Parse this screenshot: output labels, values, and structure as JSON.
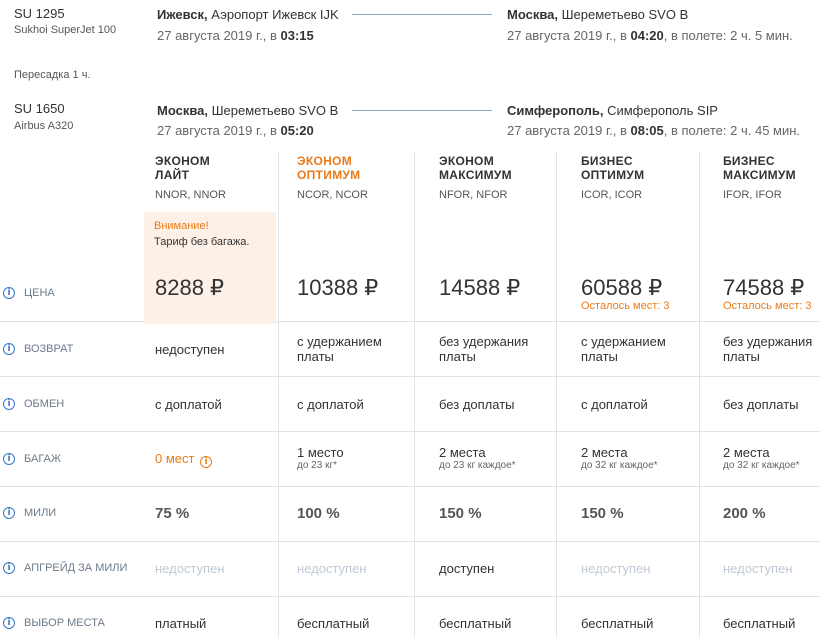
{
  "segments": [
    {
      "flight": "SU 1295",
      "aircraft": "Sukhoi SuperJet 100",
      "dep_city": "Ижевск,",
      "dep_airport": " Аэропорт Ижевск IJK",
      "dep_date": "27 августа 2019 г., в ",
      "dep_time": "03:15",
      "arr_city": "Москва,",
      "arr_airport": " Шереметьево SVO B",
      "arr_date": "27 августа 2019 г., в ",
      "arr_time": "04:20",
      "duration": ", в полете: 2 ч. 5 мин."
    },
    {
      "flight": "SU 1650",
      "aircraft": "Airbus A320",
      "dep_city": "Москва,",
      "dep_airport": " Шереметьево SVO B",
      "dep_date": "27 августа 2019 г., в ",
      "dep_time": "05:20",
      "arr_city": "Симферополь,",
      "arr_airport": " Симферополь SIP",
      "arr_date": "27 августа 2019 г., в ",
      "arr_time": "08:05",
      "duration": ", в полете: 2 ч. 45 мин."
    }
  ],
  "transfer": "Пересадка 1 ч.",
  "tariffs": [
    {
      "name1": "ЭКОНОМ",
      "name2": "ЛАЙТ",
      "code": "NNOR, NNOR",
      "highlight": false
    },
    {
      "name1": "ЭКОНОМ",
      "name2": "ОПТИМУМ",
      "code": "NCOR, NCOR",
      "highlight": true
    },
    {
      "name1": "ЭКОНОМ",
      "name2": "МАКСИМУМ",
      "code": "NFOR, NFOR",
      "highlight": false
    },
    {
      "name1": "БИЗНЕС",
      "name2": "ОПТИМУМ",
      "code": "ICOR, ICOR",
      "highlight": false
    },
    {
      "name1": "БИЗНЕС",
      "name2": "МАКСИМУМ",
      "code": "IFOR, IFOR",
      "highlight": false
    }
  ],
  "warning": {
    "title": "Внимание!",
    "text": "Тариф без багажа."
  },
  "rows": {
    "price": {
      "label": "ЦЕНА",
      "values": [
        "8288 ₽",
        "10388 ₽",
        "14588 ₽",
        "60588 ₽",
        "74588 ₽"
      ],
      "seats": [
        "",
        "",
        "",
        "Осталось мест: 3",
        "Осталось мест: 3"
      ]
    },
    "refund": {
      "label": "ВОЗВРАТ",
      "values": [
        [
          "недоступен",
          ""
        ],
        [
          "с удержанием",
          "платы"
        ],
        [
          "без удержания",
          "платы"
        ],
        [
          "с удержанием",
          "платы"
        ],
        [
          "без удержания",
          "платы"
        ]
      ]
    },
    "exchange": {
      "label": "ОБМЕН",
      "values": [
        "с доплатой",
        "с доплатой",
        "без доплаты",
        "с доплатой",
        "без доплаты"
      ]
    },
    "baggage": {
      "label": "БАГАЖ",
      "values": [
        "0 мест",
        "1 место",
        "2 места",
        "2 места",
        "2 места"
      ],
      "subs": [
        "",
        "до 23 кг*",
        "до 23 кг каждое*",
        "до 32 кг каждое*",
        "до 32 кг каждое*"
      ]
    },
    "miles": {
      "label": "МИЛИ",
      "values": [
        "75 %",
        "100 %",
        "150 %",
        "150 %",
        "200 %"
      ]
    },
    "upgrade": {
      "label": "АПГРЕЙД ЗА МИЛИ",
      "values": [
        "недоступен",
        "недоступен",
        "доступен",
        "недоступен",
        "недоступен"
      ],
      "available": [
        false,
        false,
        true,
        false,
        false
      ]
    },
    "seat_choice": {
      "label": "ВЫБОР МЕСТА",
      "values": [
        "платный",
        "бесплатный",
        "бесплатный",
        "бесплатный",
        "бесплатный"
      ]
    }
  },
  "colors": {
    "accent": "#e87b1a",
    "info": "#3b78c4",
    "disabled": "#c0cad6"
  }
}
